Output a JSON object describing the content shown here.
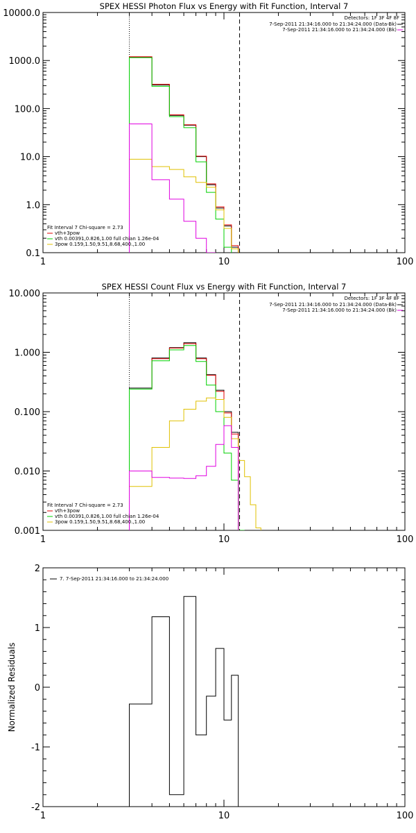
{
  "chart_data": [
    {
      "type": "line",
      "title": "SPEX HESSI Photon Flux vs Energy with Fit Function, Interval 7",
      "xscale": "log",
      "yscale": "log",
      "xlim": [
        1,
        100
      ],
      "ylim": [
        0.1,
        10000
      ],
      "xticks": [
        "1",
        "10",
        "100"
      ],
      "yticks": [
        "0.1",
        "1.0",
        "10.0",
        "100.0",
        "1000.0",
        "10000.0"
      ],
      "vlines": [
        {
          "x": 3,
          "style": "dotted"
        },
        {
          "x": 12.2,
          "style": "dashed"
        }
      ],
      "legend_top": {
        "header": "Detectors: 1F 3F 4F 8F",
        "entries": [
          {
            "label": "7-Sep-2011 21:34:16.000 to 21:34:24.000 (Data-Bk)",
            "color": "#000000"
          },
          {
            "label": "7-Sep-2011 21:34:16.000 to 21:34:24.000 (Bk)",
            "color": "#e000e0"
          }
        ]
      },
      "legend_bottom": {
        "header": "Fit Interval  7   Chi-square = 2.73",
        "entries": [
          {
            "label": "vth+3pow",
            "color": "#e00000"
          },
          {
            "label": "vth 0.00391,0.826,1.00  full chian 1.26e-04",
            "color": "#00d000"
          },
          {
            "label": "3pow 0.159,1.50,9.51,8.68,400.,1.00",
            "color": "#e0c000"
          }
        ]
      },
      "edges": [
        3,
        4,
        5,
        6,
        7,
        8,
        9,
        10,
        11,
        12,
        13,
        14
      ],
      "series": [
        {
          "color": "#000000",
          "values": [
            1180,
            310,
            72,
            45,
            10,
            2.6,
            0.85,
            0.36,
            0.13,
            null,
            null
          ]
        },
        {
          "color": "#e00000",
          "values": [
            1200,
            320,
            74,
            46,
            10.2,
            2.7,
            0.9,
            0.38,
            0.14,
            null,
            null
          ]
        },
        {
          "color": "#00d000",
          "values": [
            1150,
            290,
            68,
            40,
            7.8,
            1.8,
            0.5,
            0.13,
            null,
            null,
            null
          ]
        },
        {
          "color": "#e0c000",
          "values": [
            8.8,
            6.2,
            5.4,
            3.8,
            2.9,
            2.3,
            0.78,
            0.32,
            0.12,
            null,
            null
          ]
        },
        {
          "color": "#e000e0",
          "values": [
            48,
            3.3,
            1.3,
            0.45,
            0.2,
            0.1,
            null,
            null,
            null,
            null,
            null
          ]
        }
      ]
    },
    {
      "type": "line",
      "title": "SPEX HESSI Count Flux vs Energy with Fit Function, Interval 7",
      "xscale": "log",
      "yscale": "log",
      "xlim": [
        1,
        100
      ],
      "ylim": [
        0.001,
        10
      ],
      "xticks": [
        "1",
        "10",
        "100"
      ],
      "yticks": [
        "0.001",
        "0.010",
        "0.100",
        "1.000",
        "10.000"
      ],
      "vlines": [
        {
          "x": 3,
          "style": "dotted"
        },
        {
          "x": 12.2,
          "style": "dashed"
        }
      ],
      "legend_top": {
        "header": "Detectors: 1F 3F 4F 8F",
        "entries": [
          {
            "label": "7-Sep-2011 21:34:16.000 to 21:34:24.000 (Data-Bk)",
            "color": "#000000"
          },
          {
            "label": "7-Sep-2011 21:34:16.000 to 21:34:24.000 (Bk)",
            "color": "#e000e0"
          }
        ]
      },
      "legend_bottom": {
        "header": "Fit Interval  7   Chi-square = 2.73",
        "entries": [
          {
            "label": "vth+3pow",
            "color": "#e00000"
          },
          {
            "label": "vth 0.00391,0.826,1.00  full chian 1.26e-04",
            "color": "#00d000"
          },
          {
            "label": "3pow 0.159,1.50,9.51,8.68,400.,1.00",
            "color": "#e0c000"
          }
        ]
      },
      "edges": [
        3,
        4,
        5,
        6,
        7,
        8,
        9,
        10,
        11,
        12,
        13,
        14,
        15,
        16,
        17,
        18
      ],
      "series": [
        {
          "color": "#000000",
          "values": [
            0.25,
            0.8,
            1.2,
            1.45,
            0.8,
            0.42,
            0.23,
            0.1,
            0.045,
            null,
            null,
            null,
            null,
            null,
            null
          ]
        },
        {
          "color": "#e00000",
          "values": [
            0.24,
            0.78,
            1.18,
            1.4,
            0.78,
            0.41,
            0.22,
            0.095,
            0.042,
            null,
            null,
            null,
            null,
            null,
            null
          ]
        },
        {
          "color": "#00d000",
          "values": [
            0.24,
            0.72,
            1.1,
            1.3,
            0.7,
            0.28,
            0.1,
            0.02,
            0.007,
            0.001,
            null,
            null,
            null,
            null,
            null
          ]
        },
        {
          "color": "#e0c000",
          "values": [
            0.0055,
            0.025,
            0.07,
            0.11,
            0.15,
            0.17,
            0.16,
            0.08,
            0.035,
            0.015,
            0.008,
            0.0027,
            0.0011,
            null,
            null
          ]
        },
        {
          "color": "#e000e0",
          "values": [
            0.01,
            0.0078,
            0.0076,
            0.0075,
            0.0083,
            0.012,
            0.028,
            0.058,
            0.025,
            null,
            null,
            null,
            null,
            null,
            null
          ]
        }
      ]
    },
    {
      "type": "line",
      "title": "",
      "xscale": "log",
      "yscale": "linear",
      "xlim": [
        1,
        100
      ],
      "ylim": [
        -2,
        2
      ],
      "xticks": [
        "1",
        "10",
        "100"
      ],
      "yticks": [
        "-2",
        "-1",
        "0",
        "1",
        "2"
      ],
      "ylabel": "Normalized Residuals",
      "legend": {
        "label": "7.  7-Sep-2011 21:34:16.000 to 21:34:24.000",
        "color": "#000000"
      },
      "edges": [
        3,
        4,
        5,
        6,
        7,
        8,
        9,
        10,
        11,
        12
      ],
      "series": [
        {
          "color": "#000000",
          "values": [
            -0.28,
            1.18,
            -1.8,
            1.52,
            -0.8,
            -0.15,
            0.65,
            -0.55,
            0.2
          ]
        }
      ]
    }
  ]
}
